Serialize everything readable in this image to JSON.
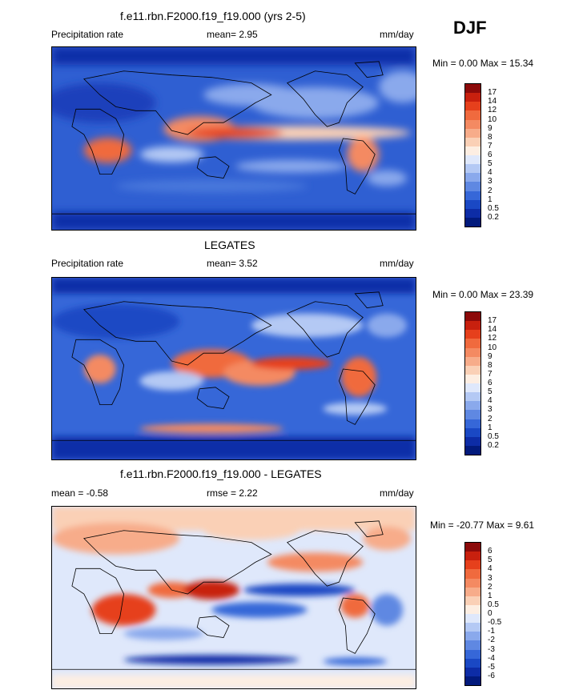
{
  "season": "DJF",
  "panels": [
    {
      "title": "f.e11.rbn.F2000.f19_f19.000 (yrs 2-5)",
      "left_label": "Precipitation rate",
      "stat_label": "mean=  2.95",
      "units": "mm/day",
      "minmax": "Min =   0.00 Max =  15.34",
      "levels": [
        "17",
        "14",
        "12",
        "10",
        "9",
        "8",
        "7",
        "6",
        "5",
        "4",
        "3",
        "2",
        "1",
        "0.5",
        "0.2"
      ],
      "colors": [
        "#8c0a0a",
        "#c8200e",
        "#e6401c",
        "#f06a3e",
        "#f48a62",
        "#f7ac8a",
        "#fad0b6",
        "#fdeee2",
        "#dfe8fb",
        "#b4c9f4",
        "#8aa9ec",
        "#5f88e2",
        "#3667d8",
        "#1a48c4",
        "#0d2ca6",
        "#021a7c"
      ]
    },
    {
      "title": "LEGATES",
      "left_label": "Precipitation rate",
      "stat_label": "mean=  3.52",
      "units": "mm/day",
      "minmax": "Min =   0.00 Max =  23.39",
      "levels": [
        "17",
        "14",
        "12",
        "10",
        "9",
        "8",
        "7",
        "6",
        "5",
        "4",
        "3",
        "2",
        "1",
        "0.5",
        "0.2"
      ],
      "colors": [
        "#8c0a0a",
        "#c8200e",
        "#e6401c",
        "#f06a3e",
        "#f48a62",
        "#f7ac8a",
        "#fad0b6",
        "#fdeee2",
        "#dfe8fb",
        "#b4c9f4",
        "#8aa9ec",
        "#5f88e2",
        "#3667d8",
        "#1a48c4",
        "#0d2ca6",
        "#021a7c"
      ]
    },
    {
      "title": "f.e11.rbn.F2000.f19_f19.000 - LEGATES",
      "left_label": "mean =  -0.58",
      "stat_label": "rmse =  2.22",
      "units": "mm/day",
      "minmax": "Min = -20.77  Max =   9.61",
      "levels": [
        "6",
        "5",
        "4",
        "3",
        "2",
        "1",
        "0.5",
        "0",
        "-0.5",
        "-1",
        "-2",
        "-3",
        "-4",
        "-5",
        "-6"
      ],
      "colors": [
        "#8c0a0a",
        "#c8200e",
        "#e6401c",
        "#f06a3e",
        "#f48a62",
        "#f7ac8a",
        "#fad0b6",
        "#fdeee2",
        "#dfe8fb",
        "#b4c9f4",
        "#8aa9ec",
        "#5f88e2",
        "#3667d8",
        "#1a48c4",
        "#0d2ca6",
        "#021a7c"
      ]
    }
  ]
}
